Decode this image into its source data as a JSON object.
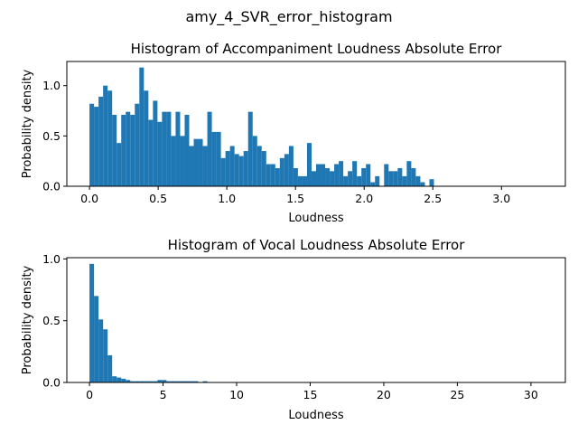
{
  "figure": {
    "suptitle": "amy_4_SVR_error_histogram"
  },
  "chart_data": [
    {
      "type": "bar",
      "title": "Histogram of Accompaniment Loudness Absolute Error",
      "xlabel": "Loudness",
      "ylabel": "Probability density",
      "xlim": [
        -0.165,
        3.465
      ],
      "ylim": [
        0,
        1.24
      ],
      "xticks": [
        0.0,
        0.5,
        1.0,
        1.5,
        2.0,
        2.5,
        3.0
      ],
      "xtick_labels": [
        "0.0",
        "0.5",
        "1.0",
        "1.5",
        "2.0",
        "2.5",
        "3.0"
      ],
      "yticks": [
        0.0,
        0.5,
        1.0
      ],
      "ytick_labels": [
        "0.0",
        "0.5",
        "1.0"
      ],
      "bin_start": 0.0,
      "bin_width": 0.033,
      "values": [
        0.82,
        0.79,
        0.89,
        1.0,
        0.95,
        0.71,
        0.43,
        0.71,
        0.74,
        0.71,
        0.82,
        1.18,
        0.95,
        0.66,
        0.85,
        0.64,
        0.74,
        0.74,
        0.5,
        0.74,
        0.5,
        0.71,
        0.4,
        0.47,
        0.47,
        0.4,
        0.74,
        0.54,
        0.54,
        0.28,
        0.35,
        0.4,
        0.32,
        0.3,
        0.35,
        0.74,
        0.5,
        0.4,
        0.35,
        0.22,
        0.22,
        0.18,
        0.28,
        0.32,
        0.4,
        0.18,
        0.1,
        0.1,
        0.43,
        0.15,
        0.22,
        0.22,
        0.18,
        0.15,
        0.22,
        0.25,
        0.1,
        0.15,
        0.25,
        0.1,
        0.18,
        0.22,
        0.04,
        0.1,
        0.0,
        0.22,
        0.15,
        0.15,
        0.18,
        0.1,
        0.25,
        0.18,
        0.1,
        0.04,
        0.0,
        0.07,
        0.0,
        0.0,
        0.0,
        0.0,
        0.0,
        0.0,
        0.0,
        0.0,
        0.0,
        0.0,
        0.0,
        0.0,
        0.0,
        0.0,
        0.0,
        0.0,
        0.0,
        0.0,
        0.0,
        0.0,
        0.0,
        0.0,
        0.0,
        0.0
      ],
      "color": "#1f77b4"
    },
    {
      "type": "bar",
      "title": "Histogram of Vocal Loudness Absolute Error",
      "xlabel": "Loudness",
      "ylabel": "Probability density",
      "xlim": [
        -1.54,
        32.34
      ],
      "ylim": [
        0,
        1.01
      ],
      "xticks": [
        0,
        5,
        10,
        15,
        20,
        25,
        30
      ],
      "xtick_labels": [
        "0",
        "5",
        "10",
        "15",
        "20",
        "25",
        "30"
      ],
      "yticks": [
        0.0,
        0.5,
        1.0
      ],
      "ytick_labels": [
        "0.0",
        "0.5",
        "1.0"
      ],
      "bin_start": 0.0,
      "bin_width": 0.308,
      "values": [
        0.96,
        0.7,
        0.51,
        0.43,
        0.22,
        0.05,
        0.04,
        0.03,
        0.02,
        0.01,
        0.01,
        0.01,
        0.01,
        0.01,
        0.01,
        0.02,
        0.02,
        0.01,
        0.01,
        0.01,
        0.01,
        0.01,
        0.01,
        0.01,
        0.0,
        0.01,
        0.0,
        0.0,
        0.0,
        0.0,
        0.0,
        0.0,
        0.0,
        0.0,
        0.0,
        0.0,
        0.0,
        0.0,
        0.0,
        0.0,
        0.0,
        0.0,
        0.0,
        0.0,
        0.0,
        0.0,
        0.0,
        0.0,
        0.0,
        0.0,
        0.0,
        0.0,
        0.0,
        0.0,
        0.0,
        0.0,
        0.0,
        0.0,
        0.0,
        0.0,
        0.0,
        0.0,
        0.0,
        0.0,
        0.0,
        0.0,
        0.0,
        0.0,
        0.0,
        0.0,
        0.0,
        0.0,
        0.0,
        0.0,
        0.0,
        0.0,
        0.0,
        0.0,
        0.0,
        0.0,
        0.0,
        0.0,
        0.0,
        0.0,
        0.0,
        0.0,
        0.0,
        0.0,
        0.0,
        0.0,
        0.0,
        0.0,
        0.0,
        0.0,
        0.0,
        0.0,
        0.0,
        0.0,
        0.0,
        0.0
      ],
      "color": "#1f77b4"
    }
  ]
}
